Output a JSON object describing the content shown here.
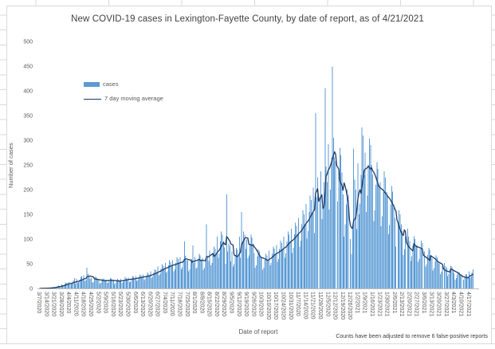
{
  "chart": {
    "title": "New COVID-19 cases in Lexington-Fayette County, by date of report, as of 4/21/2021",
    "y_axis_title": "Number of cases",
    "x_axis_title": "Date of report",
    "footnote": "Counts have been adjusted to remove 6 false-positive reports",
    "legend": {
      "bar_label": "cases",
      "line_label": "7 day moving average"
    },
    "colors": {
      "bar": "#5B9BD5",
      "line": "#1F3864",
      "axis_line": "#BFBFBF",
      "tick_text": "#595959",
      "title_text": "#404040",
      "chart_border": "#D9D9D9",
      "sheet_grid": "#D9D9D9",
      "background": "#FFFFFF"
    }
  },
  "chart_data": {
    "type": "bar",
    "title": "New COVID-19 cases in Lexington-Fayette County, by date of report, as of 4/21/2021",
    "xlabel": "Date of report",
    "ylabel": "Number of cases",
    "ylim": [
      0,
      500
    ],
    "y_ticks": [
      0,
      50,
      100,
      150,
      200,
      250,
      300,
      350,
      400,
      450,
      500
    ],
    "grid": false,
    "legend_position": "upper-left-inside",
    "x_start_date": "3/7/2020",
    "x_end_date": "4/21/2021",
    "x_frequency": "daily",
    "x_tick_labels": [
      "3/7/2020",
      "3/14/2020",
      "3/21/2020",
      "3/28/2020",
      "4/4/2020",
      "4/11/2020",
      "4/18/2020",
      "4/25/2020",
      "5/2/2020",
      "5/9/2020",
      "5/16/2020",
      "5/23/2020",
      "5/30/2020",
      "6/6/2020",
      "6/13/2020",
      "6/20/2020",
      "6/27/2020",
      "7/4/2020",
      "7/11/2020",
      "7/18/2020",
      "7/25/2020",
      "8/1/2020",
      "8/8/2020",
      "8/15/2020",
      "8/22/2020",
      "8/29/2020",
      "9/5/2020",
      "9/12/2020",
      "9/19/2020",
      "9/26/2020",
      "10/3/2020",
      "10/10/2020",
      "10/17/2020",
      "10/24/2020",
      "10/31/2020",
      "11/7/2020",
      "11/14/2020",
      "11/21/2020",
      "11/28/2020",
      "12/5/2020",
      "12/12/2020",
      "12/19/2020",
      "12/26/2020",
      "1/2/2021",
      "1/9/2021",
      "1/16/2021",
      "1/23/2021",
      "1/30/2021",
      "2/6/2021",
      "2/13/2021",
      "2/20/2021",
      "2/27/2021",
      "3/6/2021",
      "3/13/2021",
      "3/20/2021",
      "3/27/2021",
      "4/3/2021",
      "4/10/2021",
      "4/17/2021"
    ],
    "series": [
      {
        "name": "cases",
        "type": "bar",
        "values": [
          0,
          0,
          1,
          0,
          1,
          0,
          1,
          1,
          0,
          1,
          2,
          2,
          1,
          2,
          3,
          2,
          3,
          5,
          6,
          4,
          5,
          8,
          5,
          6,
          9,
          12,
          11,
          10,
          13,
          8,
          9,
          12,
          16,
          21,
          10,
          19,
          11,
          13,
          18,
          23,
          25,
          17,
          27,
          15,
          17,
          42,
          30,
          26,
          19,
          21,
          12,
          13,
          19,
          24,
          22,
          18,
          17,
          10,
          11,
          16,
          20,
          19,
          16,
          18,
          11,
          12,
          17,
          21,
          20,
          17,
          16,
          9,
          11,
          15,
          19,
          18,
          15,
          19,
          11,
          13,
          18,
          23,
          21,
          18,
          22,
          13,
          14,
          20,
          25,
          23,
          20,
          25,
          15,
          17,
          23,
          28,
          27,
          23,
          28,
          17,
          19,
          26,
          32,
          30,
          26,
          35,
          21,
          24,
          32,
          39,
          37,
          32,
          44,
          27,
          30,
          40,
          49,
          46,
          40,
          52,
          32,
          35,
          47,
          57,
          54,
          47,
          57,
          35,
          39,
          52,
          63,
          60,
          52,
          63,
          39,
          43,
          57,
          95,
          66,
          57,
          57,
          35,
          39,
          52,
          60,
          87,
          52,
          64,
          40,
          43,
          58,
          70,
          67,
          58,
          62,
          38,
          42,
          56,
          130,
          65,
          56,
          77,
          47,
          52,
          70,
          85,
          81,
          70,
          105,
          62,
          71,
          95,
          115,
          109,
          95,
          83,
          50,
          190,
          75,
          91,
          86,
          55,
          75,
          44,
          49,
          68,
          82,
          78,
          68,
          105,
          62,
          155,
          95,
          115,
          109,
          80,
          99,
          61,
          67,
          90,
          109,
          103,
          90,
          72,
          42,
          47,
          65,
          79,
          75,
          65,
          64,
          38,
          42,
          58,
          70,
          67,
          58,
          77,
          47,
          52,
          70,
          85,
          81,
          70,
          88,
          54,
          60,
          80,
          97,
          92,
          80,
          105,
          62,
          71,
          95,
          115,
          109,
          95,
          121,
          72,
          82,
          110,
          133,
          127,
          110,
          143,
          85,
          97,
          130,
          158,
          150,
          130,
          171,
          101,
          116,
          155,
          188,
          179,
          155,
          204,
          112,
          355,
          185,
          225,
          0,
          185,
          237,
          140,
          161,
          215,
          406,
          247,
          215,
          292,
          160,
          200,
          265,
          449,
          305,
          265,
          258,
          0,
          176,
          235,
          285,
          270,
          235,
          190,
          105,
          130,
          170,
          200,
          190,
          0,
          100,
          70,
          120,
          283,
          220,
          200,
          120,
          253,
          150,
          172,
          230,
          326,
          310,
          230,
          275,
          155,
          188,
          250,
          303,
          290,
          250,
          231,
          136,
          158,
          210,
          256,
          242,
          210,
          215,
          126,
          146,
          195,
          237,
          224,
          195,
          187,
          110,
          128,
          170,
          207,
          196,
          170,
          143,
          85,
          0,
          130,
          158,
          150,
          130,
          116,
          68,
          79,
          105,
          0,
          121,
          105,
          96,
          56,
          65,
          87,
          106,
          100,
          87,
          88,
          54,
          60,
          80,
          97,
          92,
          0,
          75,
          44,
          49,
          68,
          82,
          78,
          68,
          61,
          36,
          41,
          55,
          67,
          63,
          55,
          50,
          29,
          34,
          45,
          0,
          52,
          45,
          42,
          25,
          29,
          38,
          46,
          44,
          38,
          31,
          18,
          21,
          28,
          34,
          32,
          28,
          26,
          0,
          18,
          24,
          29,
          28,
          24,
          35,
          21,
          24,
          32,
          39
        ]
      },
      {
        "name": "7 day moving average",
        "type": "line",
        "definition": "trailing 7-day mean of the daily cases series"
      }
    ]
  }
}
